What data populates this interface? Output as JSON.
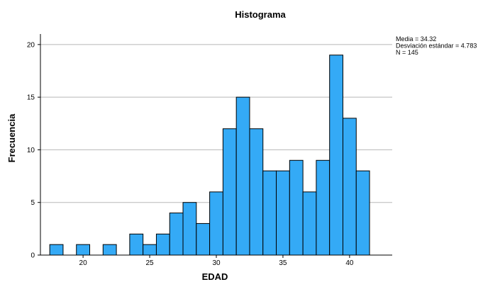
{
  "chart_data": {
    "type": "bar",
    "title": "Histograma",
    "xlabel": "EDAD",
    "ylabel": "Frecuencia",
    "bin_width": 1,
    "bins": [
      {
        "x": 18,
        "value": 1
      },
      {
        "x": 19,
        "value": 0
      },
      {
        "x": 20,
        "value": 1
      },
      {
        "x": 21,
        "value": 0
      },
      {
        "x": 22,
        "value": 1
      },
      {
        "x": 23,
        "value": 0
      },
      {
        "x": 24,
        "value": 2
      },
      {
        "x": 25,
        "value": 1
      },
      {
        "x": 26,
        "value": 2
      },
      {
        "x": 27,
        "value": 4
      },
      {
        "x": 28,
        "value": 5
      },
      {
        "x": 29,
        "value": 3
      },
      {
        "x": 30,
        "value": 6
      },
      {
        "x": 31,
        "value": 12
      },
      {
        "x": 32,
        "value": 15
      },
      {
        "x": 33,
        "value": 12
      },
      {
        "x": 34,
        "value": 8
      },
      {
        "x": 35,
        "value": 8
      },
      {
        "x": 36,
        "value": 9
      },
      {
        "x": 37,
        "value": 6
      },
      {
        "x": 38,
        "value": 9
      },
      {
        "x": 39,
        "value": 19
      },
      {
        "x": 40,
        "value": 13
      },
      {
        "x": 41,
        "value": 8
      }
    ],
    "xlim": [
      16.8,
      43.2
    ],
    "ylim": [
      0,
      21
    ],
    "xticks": [
      20,
      25,
      30,
      35,
      40
    ],
    "yticks": [
      0,
      5,
      10,
      15,
      20
    ],
    "grid": "horizontal",
    "bar_color": "#34aaf6",
    "bar_edge_color": "#000000",
    "stats": [
      "Media = 34.32",
      "Desviación estándar = 4.783",
      "N = 145"
    ]
  }
}
